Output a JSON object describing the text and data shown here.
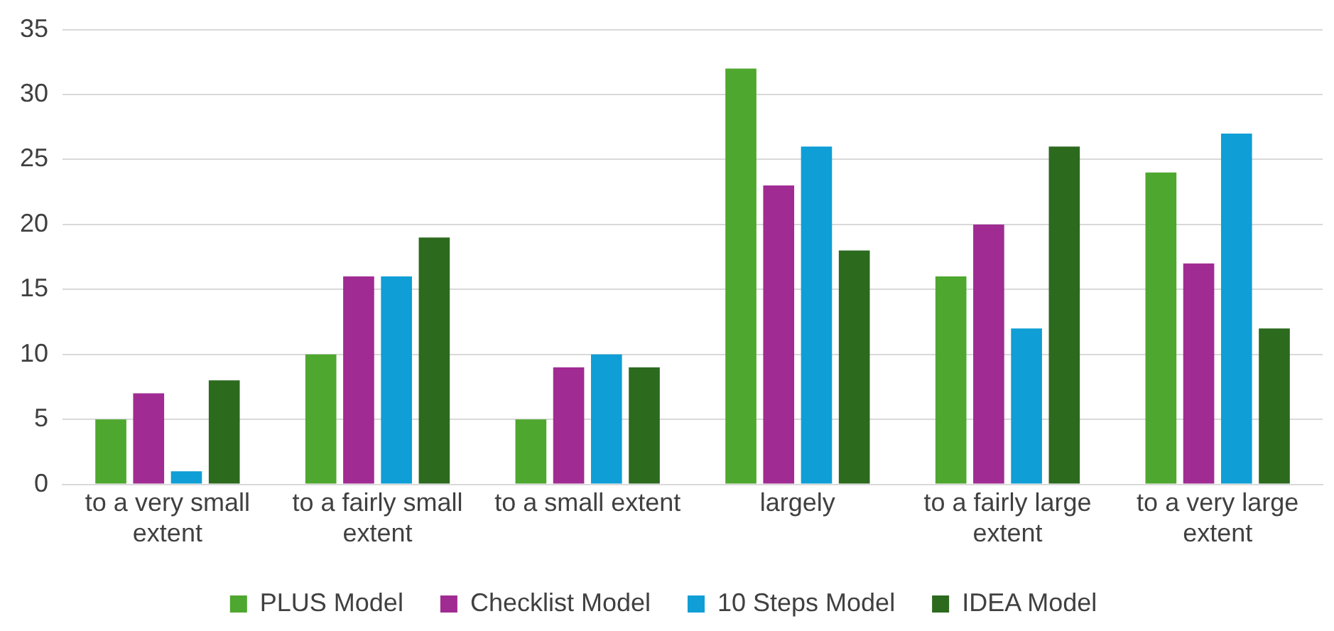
{
  "chart_data": {
    "type": "bar",
    "categories": [
      "to a very small extent",
      "to a fairly small extent",
      "to a small extent",
      "largely",
      "to a fairly large extent",
      "to a very large extent"
    ],
    "series": [
      {
        "name": "PLUS Model",
        "color": "#4ea72e",
        "values": [
          5,
          10,
          5,
          32,
          16,
          24
        ]
      },
      {
        "name": "Checklist Model",
        "color": "#a02b93",
        "values": [
          7,
          16,
          9,
          23,
          20,
          17
        ]
      },
      {
        "name": "10 Steps Model",
        "color": "#0f9ed5",
        "values": [
          1,
          16,
          10,
          26,
          12,
          27
        ]
      },
      {
        "name": "IDEA Model",
        "color": "#2c6a1e",
        "values": [
          8,
          19,
          9,
          18,
          26,
          12
        ]
      }
    ],
    "ylim": [
      0,
      35
    ],
    "yticks": [
      0,
      5,
      10,
      15,
      20,
      25,
      30,
      35
    ],
    "grid": "y",
    "legend": "bottom"
  }
}
